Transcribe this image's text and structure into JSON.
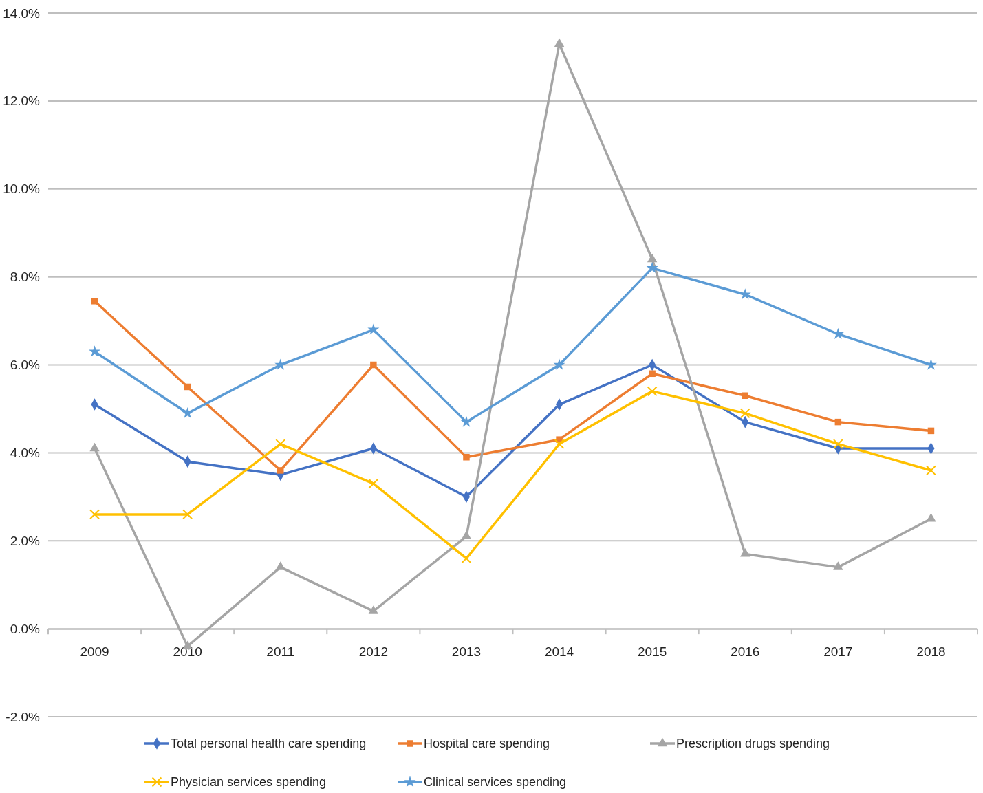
{
  "chart_data": {
    "type": "line",
    "categories": [
      "2009",
      "2010",
      "2011",
      "2012",
      "2013",
      "2014",
      "2015",
      "2016",
      "2017",
      "2018"
    ],
    "series": [
      {
        "name": "Total personal health care spending",
        "color": "#4472c4",
        "marker": "diamond",
        "values": [
          5.1,
          3.8,
          3.5,
          4.1,
          3.0,
          5.1,
          6.0,
          4.7,
          4.1,
          4.1
        ]
      },
      {
        "name": "Hospital care spending",
        "color": "#ed7d31",
        "marker": "square",
        "values": [
          7.45,
          5.5,
          3.6,
          6.0,
          3.9,
          4.3,
          5.8,
          5.3,
          4.7,
          4.5
        ]
      },
      {
        "name": "Prescription drugs spending",
        "color": "#a5a5a5",
        "marker": "triangle",
        "values": [
          4.1,
          -0.4,
          1.4,
          0.4,
          2.1,
          13.3,
          8.4,
          1.7,
          1.4,
          2.5
        ]
      },
      {
        "name": "Physician services spending",
        "color": "#ffc000",
        "marker": "cross",
        "values": [
          2.6,
          2.6,
          4.2,
          3.3,
          1.6,
          4.2,
          5.4,
          4.9,
          4.2,
          3.6
        ]
      },
      {
        "name": "Clinical services spending",
        "color": "#5b9bd5",
        "marker": "star",
        "values": [
          6.3,
          4.9,
          6.0,
          6.8,
          4.7,
          6.0,
          8.2,
          7.6,
          6.7,
          6.0
        ]
      }
    ],
    "ylim": [
      -2,
      14
    ],
    "yticks": [
      {
        "value": -2,
        "label": "-2.0%"
      },
      {
        "value": 0,
        "label": "0.0%"
      },
      {
        "value": 2,
        "label": "2.0%"
      },
      {
        "value": 4,
        "label": "4.0%"
      },
      {
        "value": 6,
        "label": "6.0%"
      },
      {
        "value": 8,
        "label": "8.0%"
      },
      {
        "value": 10,
        "label": "10.0%"
      },
      {
        "value": 12,
        "label": "12.0%"
      },
      {
        "value": 14,
        "label": "14.0%"
      }
    ],
    "grid": "y",
    "legend": "bottom",
    "line_style": "solid"
  }
}
